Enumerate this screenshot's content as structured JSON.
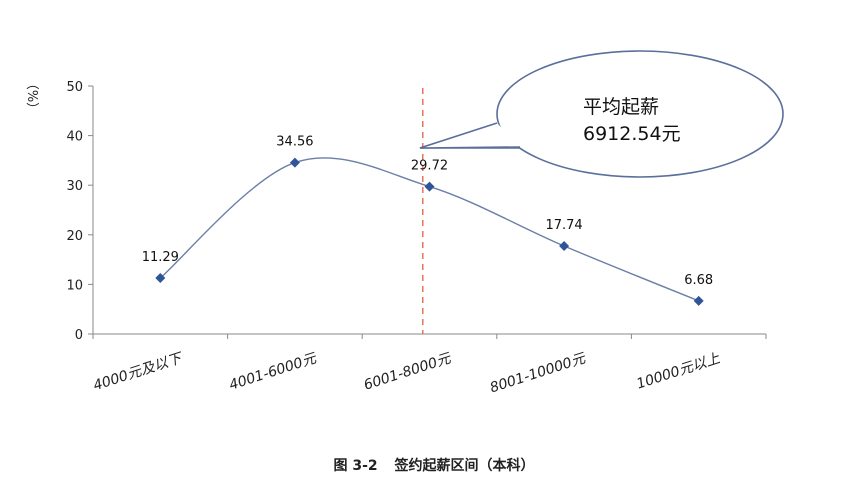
{
  "chart_data": {
    "type": "line",
    "ylabel": "（%）",
    "ylim": [
      0,
      50
    ],
    "yticks": [
      0,
      10,
      20,
      30,
      40,
      50
    ],
    "categories": [
      "4000元及以下",
      "4001-6000元",
      "6001-8000元",
      "8001-10000元",
      "10000元以上"
    ],
    "series": [
      {
        "values": [
          11.29,
          34.56,
          29.72,
          17.74,
          6.68
        ],
        "color": "#2f5597"
      }
    ],
    "data_labels": [
      "11.29",
      "34.56",
      "29.72",
      "17.74",
      "6.68"
    ],
    "line_color": "#6b7fa8",
    "marker_color": "#2f5597",
    "reference_line": {
      "category_position": 1.95,
      "style": "dashed",
      "color": "#e8735a"
    },
    "annotation": {
      "line1": "平均起薪",
      "line2": "6912.54元"
    },
    "grid": false
  },
  "caption": {
    "number": "图 3-2",
    "title": "签约起薪区间（本科）"
  }
}
